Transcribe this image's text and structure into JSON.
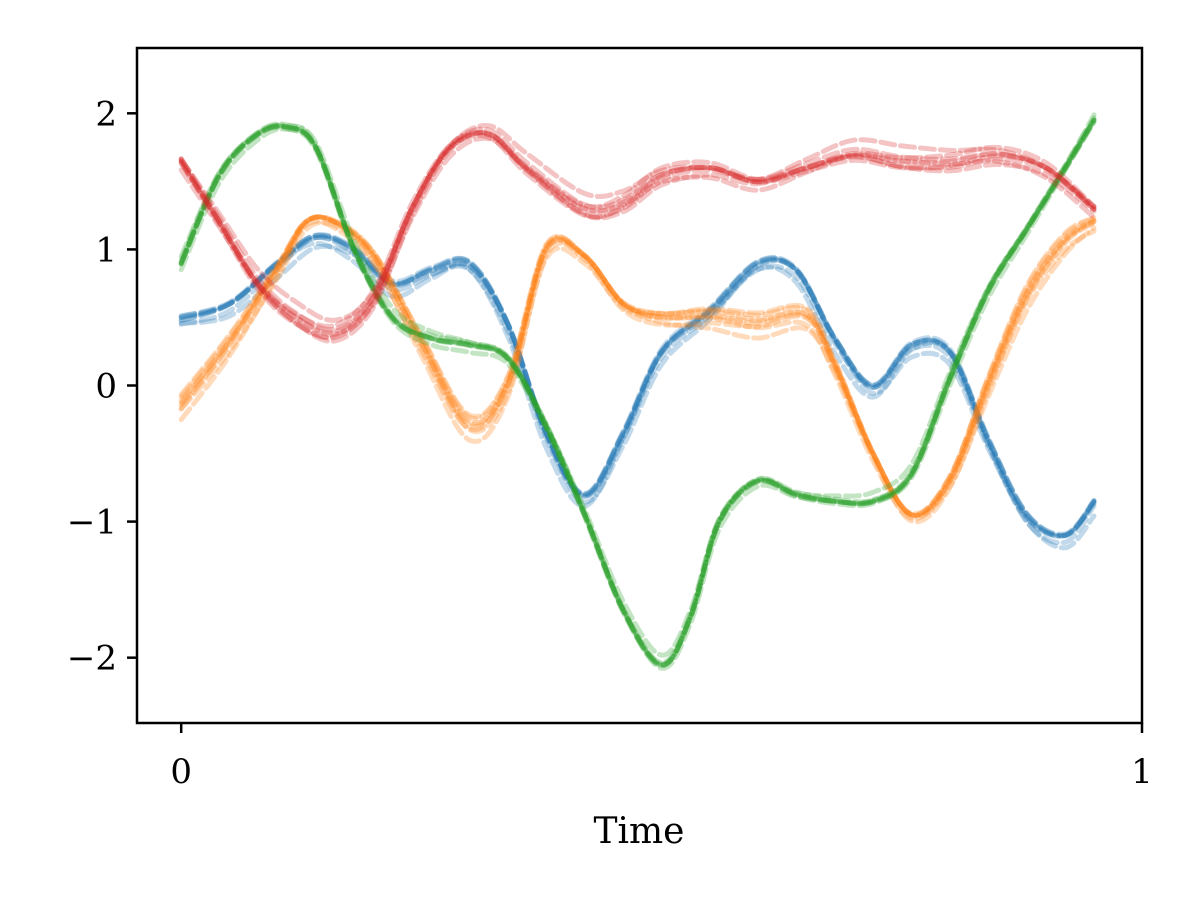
{
  "chart_data": {
    "type": "line",
    "title": "",
    "xlabel": "Time",
    "ylabel": "",
    "xlim": [
      -0.046,
      1.0
    ],
    "ylim": [
      -2.48,
      2.48
    ],
    "x_ticks": [
      0,
      1
    ],
    "x_tick_labels": [
      "0",
      "1"
    ],
    "y_ticks": [
      2,
      1,
      0,
      -1,
      -2
    ],
    "y_tick_labels": [
      "2",
      "1",
      "0",
      "−1",
      "−2"
    ],
    "grid": false,
    "legend": "none",
    "samples_per_series": 8,
    "samples_style": "dashed, semi-transparent",
    "series": [
      {
        "color": "#1f77b4",
        "x": [
          0,
          0.05,
          0.1,
          0.14,
          0.18,
          0.22,
          0.26,
          0.3,
          0.34,
          0.38,
          0.42,
          0.46,
          0.5,
          0.55,
          0.6,
          0.64,
          0.68,
          0.72,
          0.76,
          0.8,
          0.84,
          0.88,
          0.92,
          0.95
        ],
        "y": [
          0.5,
          0.6,
          0.9,
          1.1,
          1.0,
          0.75,
          0.85,
          0.9,
          0.45,
          -0.35,
          -0.8,
          -0.35,
          0.25,
          0.55,
          0.9,
          0.85,
          0.35,
          0.0,
          0.3,
          0.25,
          -0.4,
          -0.95,
          -1.1,
          -0.85
        ]
      },
      {
        "color": "#ff7f0e",
        "x": [
          0,
          0.05,
          0.1,
          0.13,
          0.16,
          0.2,
          0.25,
          0.3,
          0.34,
          0.38,
          0.42,
          0.46,
          0.5,
          0.55,
          0.6,
          0.65,
          0.68,
          0.72,
          0.76,
          0.8,
          0.84,
          0.88,
          0.92,
          0.95
        ],
        "y": [
          -0.15,
          0.3,
          0.85,
          1.2,
          1.2,
          0.95,
          0.3,
          -0.3,
          0.0,
          1.0,
          0.95,
          0.6,
          0.5,
          0.5,
          0.45,
          0.5,
          0.15,
          -0.5,
          -0.95,
          -0.7,
          0.0,
          0.65,
          1.05,
          1.2
        ]
      },
      {
        "color": "#2ca02c",
        "x": [
          0,
          0.04,
          0.08,
          0.11,
          0.14,
          0.18,
          0.22,
          0.26,
          0.3,
          0.34,
          0.38,
          0.42,
          0.46,
          0.5,
          0.53,
          0.56,
          0.6,
          0.64,
          0.68,
          0.72,
          0.76,
          0.8,
          0.84,
          0.88,
          0.92,
          0.95
        ],
        "y": [
          0.9,
          1.55,
          1.85,
          1.9,
          1.75,
          1.0,
          0.5,
          0.35,
          0.3,
          0.2,
          -0.3,
          -0.95,
          -1.65,
          -2.05,
          -1.7,
          -1.0,
          -0.7,
          -0.8,
          -0.85,
          -0.85,
          -0.65,
          0.05,
          0.7,
          1.15,
          1.6,
          1.95
        ]
      },
      {
        "color": "#d62728",
        "x": [
          0,
          0.04,
          0.08,
          0.12,
          0.16,
          0.2,
          0.24,
          0.28,
          0.32,
          0.36,
          0.42,
          0.46,
          0.5,
          0.55,
          0.6,
          0.65,
          0.7,
          0.75,
          0.8,
          0.85,
          0.9,
          0.95
        ],
        "y": [
          1.65,
          1.2,
          0.75,
          0.5,
          0.4,
          0.65,
          1.3,
          1.75,
          1.85,
          1.6,
          1.3,
          1.35,
          1.55,
          1.6,
          1.5,
          1.6,
          1.7,
          1.65,
          1.65,
          1.7,
          1.6,
          1.3
        ]
      }
    ]
  }
}
